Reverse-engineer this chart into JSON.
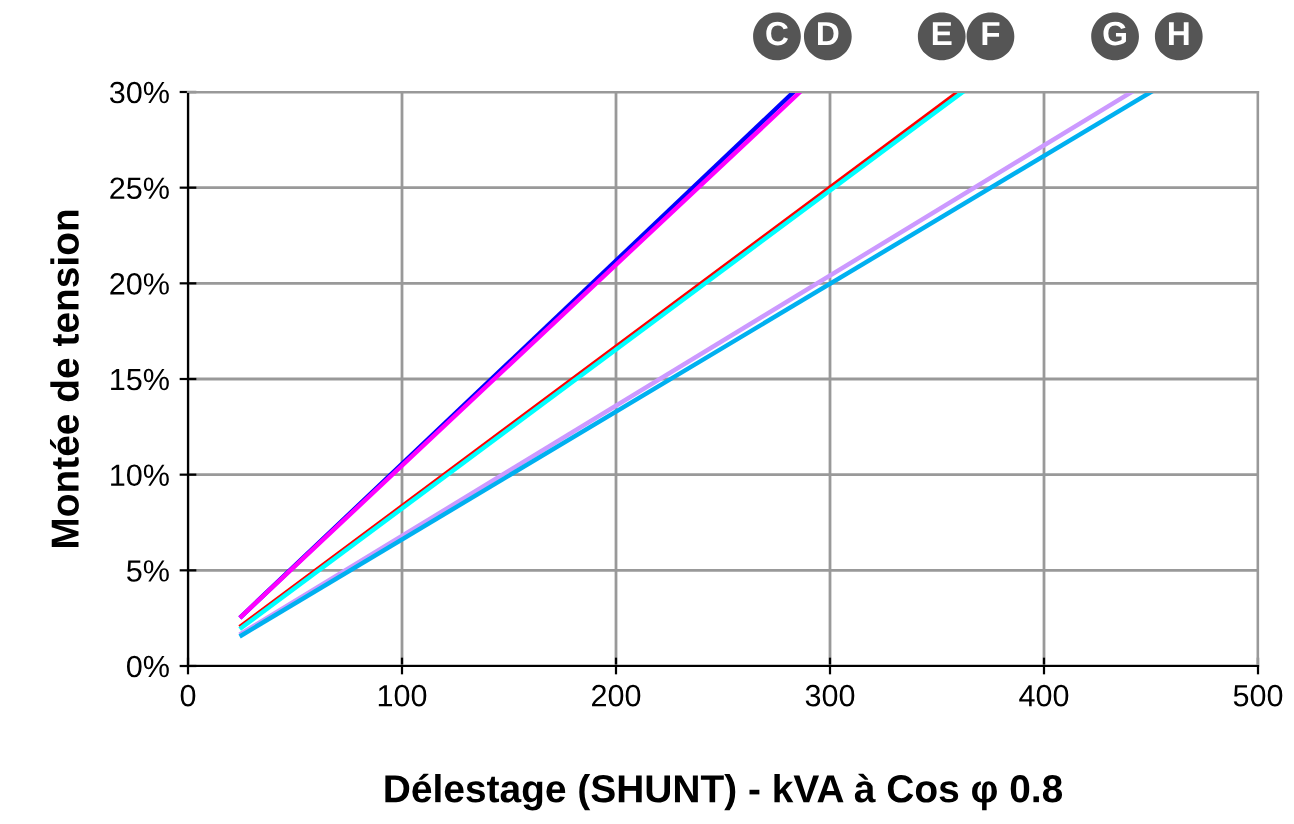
{
  "chart_data": {
    "type": "line",
    "xlabel": "Délestage (SHUNT) - kVA à Cos φ 0.8",
    "ylabel": "Montée de tension",
    "series": [
      {
        "color": "#0000ff",
        "x": [
          25,
          283
        ],
        "values": [
          2.6,
          30
        ]
      },
      {
        "color": "#ff00ff",
        "x": [
          25,
          286
        ],
        "values": [
          2.6,
          30
        ]
      },
      {
        "color": "#ff0000",
        "x": [
          25,
          360
        ],
        "values": [
          2.1,
          30
        ]
      },
      {
        "color": "#00ffff",
        "x": [
          25,
          362
        ],
        "values": [
          2.0,
          30
        ]
      },
      {
        "color": "#cc99ff",
        "x": [
          25,
          441
        ],
        "values": [
          1.7,
          30
        ]
      },
      {
        "color": "#00b0f0",
        "x": [
          25,
          450
        ],
        "values": [
          1.6,
          30
        ]
      }
    ],
    "annotations": [
      {
        "text": "C",
        "x": 283,
        "y": 30
      },
      {
        "text": "D",
        "x": 286,
        "y": 30
      },
      {
        "text": "E",
        "x": 360,
        "y": 30
      },
      {
        "text": "F",
        "x": 362,
        "y": 30
      },
      {
        "text": "G",
        "x": 441,
        "y": 30
      },
      {
        "text": "H",
        "x": 450,
        "y": 30
      }
    ],
    "xlim": [
      0,
      500
    ],
    "xticks": [
      0,
      100,
      200,
      300,
      400,
      500
    ],
    "ylim": [
      0,
      30
    ],
    "yticks": [
      {
        "value": 0,
        "label": "0%"
      },
      {
        "value": 5,
        "label": "5%"
      },
      {
        "value": 10,
        "label": "10%"
      },
      {
        "value": 15,
        "label": "15%"
      },
      {
        "value": 20,
        "label": "20%"
      },
      {
        "value": 25,
        "label": "25%"
      },
      {
        "value": 30,
        "label": "30%"
      }
    ],
    "grid": true,
    "marker": "none",
    "line_style": "solid",
    "legend": false
  }
}
